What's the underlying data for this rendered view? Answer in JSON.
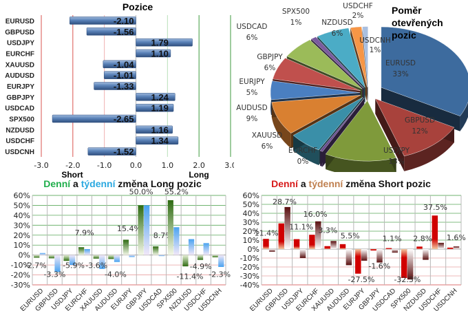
{
  "chart_data": [
    {
      "id": "positions",
      "type": "bar",
      "orientation": "horizontal",
      "title": "Pozice",
      "categories": [
        "EURUSD",
        "GBPUSD",
        "USDJPY",
        "EURCHF",
        "XAUUSD",
        "AUDUSD",
        "EURJPY",
        "GBPJPY",
        "USDCAD",
        "SPX500",
        "NZDUSD",
        "USDCHF",
        "USDCNH"
      ],
      "values": [
        -2.1,
        -1.56,
        1.79,
        1.1,
        -1.04,
        -1.01,
        -1.33,
        1.24,
        1.19,
        -2.65,
        1.16,
        1.34,
        -1.52
      ],
      "value_labels": [
        "-2.10",
        "-1.56",
        "1.79",
        "1.10",
        "-1.04",
        "-1.01",
        "-1.33",
        "1.24",
        "1.19",
        "-2.65",
        "1.16",
        "1.34",
        "-1.52"
      ],
      "xlim": [
        -3.0,
        3.0
      ],
      "xticks": [
        "-3.0",
        "-2.0",
        "-1.0",
        "0.0",
        "1.0",
        "2.0",
        "3.0"
      ],
      "xtick_values": [
        -3,
        -2,
        -1,
        0,
        1,
        2,
        3
      ],
      "short_label": "Short",
      "long_label": "Long",
      "colors": {
        "bar": "#4a72a8",
        "short_line": "#d9534f",
        "long_line": "#3c9a3c"
      }
    },
    {
      "id": "ratio",
      "type": "pie",
      "title_lines": [
        "Poměr",
        "otevřených",
        "pozic"
      ],
      "slices": [
        {
          "label": "EURUSD",
          "value": 33,
          "text": "33%",
          "color": "#3d6b9e"
        },
        {
          "label": "GBPUSD",
          "value": 12,
          "text": "12%",
          "color": "#a8423c"
        },
        {
          "label": "USDJPY",
          "value": 13,
          "text": "13%",
          "color": "#7f9a3b"
        },
        {
          "label": "EURCHF",
          "value": 0.5,
          "text": "0%",
          "color": "#6a4a8e"
        },
        {
          "label": "XAUUSD",
          "value": 6,
          "text": "6%",
          "color": "#3a8fa8"
        },
        {
          "label": "AUDUSD",
          "value": 9,
          "text": "9%",
          "color": "#d98031"
        },
        {
          "label": "EURJPY",
          "value": 5,
          "text": "5%",
          "color": "#4a7fc1"
        },
        {
          "label": "GBPJPY",
          "value": 6,
          "text": "6%",
          "color": "#c0504d"
        },
        {
          "label": "USDCAD",
          "value": 6,
          "text": "6%",
          "color": "#9bbb59"
        },
        {
          "label": "SPX500",
          "value": 1,
          "text": "1%",
          "color": "#7a5a9e"
        },
        {
          "label": "NZDUSD",
          "value": 6,
          "text": "6%",
          "color": "#4bacc6"
        },
        {
          "label": "USDCHF",
          "value": 2,
          "text": "2%",
          "color": "#f79646"
        },
        {
          "label": "USDCNH",
          "value": 1,
          "text": "1%",
          "color": "#a9bfe0"
        }
      ]
    },
    {
      "id": "long_change",
      "type": "bar",
      "title_parts": [
        {
          "text": "Denní",
          "color": "#1fae4b"
        },
        {
          "text": " a ",
          "color": "#111111"
        },
        {
          "text": "týdenní",
          "color": "#2aa8e0"
        },
        {
          "text": " změna Long pozic",
          "color": "#111111"
        }
      ],
      "categories": [
        "EURUSD",
        "GBPUSD",
        "USDJPY",
        "EURCHF",
        "XAUUSD",
        "AUDUSD",
        "EURJPY",
        "GBPJPY",
        "USDCAD",
        "SPX500",
        "NZDUSD",
        "USDCHF",
        "USDCNH"
      ],
      "series": [
        {
          "name": "Denní",
          "color": "#2e7d1e",
          "values": [
            -2.7,
            -3.3,
            -5.9,
            7.9,
            -3.6,
            -4.0,
            15.4,
            50.0,
            8.7,
            55.2,
            -11.4,
            -4.9,
            -2.3
          ],
          "labels": [
            "-2.7%",
            "-3.3%",
            "-5.9%",
            "7.9%",
            "-3.6%",
            "-4.0%",
            "15.4%",
            "50.0%",
            "8.7%",
            "55.2%",
            "-11.4%",
            "-4.9%",
            "-2.3%"
          ]
        },
        {
          "name": "Týdenní",
          "color": "#4aa3f0",
          "values": [
            2,
            -17,
            -10,
            6,
            -14,
            -7,
            -2,
            50,
            -1,
            28,
            16,
            12,
            -12
          ]
        }
      ],
      "ylim": [
        -30,
        60
      ],
      "yticks": [
        "-30%",
        "-20%",
        "-10%",
        "0%",
        "10%",
        "20%",
        "30%",
        "40%",
        "50%",
        "60%"
      ],
      "ytick_values": [
        -30,
        -20,
        -10,
        0,
        10,
        20,
        30,
        40,
        50,
        60
      ]
    },
    {
      "id": "short_change",
      "type": "bar",
      "title_parts": [
        {
          "text": "Denní",
          "color": "#d71a1a"
        },
        {
          "text": " a ",
          "color": "#111111"
        },
        {
          "text": "týdenní",
          "color": "#c08050"
        },
        {
          "text": " změna Short pozic",
          "color": "#111111"
        }
      ],
      "categories": [
        "EURUSD",
        "GBPUSD",
        "USDJPY",
        "EURCHF",
        "XAUUSD",
        "AUDUSD",
        "EURJPY",
        "GBPJPY",
        "USDCAD",
        "SPX500",
        "NZDUSD",
        "USDCHF",
        "USDCNH"
      ],
      "series": [
        {
          "name": "Denní",
          "color": "#cc0000",
          "values": [
            11.4,
            28.7,
            11.1,
            16.0,
            3.3,
            5.5,
            -27.5,
            -1.6,
            1.1,
            -32.3,
            2.8,
            37.5,
            1.6
          ],
          "labels": [
            "11.4%",
            "28.7%",
            "11.1%",
            "16.0%",
            "3.3%",
            "5.5%",
            "-27.5%",
            "-1.6%",
            "1.1%",
            "-32.3%",
            "2.8%",
            "37.5%",
            "1.6%"
          ]
        },
        {
          "name": "Týdenní",
          "color": "#6b1a1a",
          "values": [
            -3,
            47,
            -10,
            31,
            9,
            -18,
            -13,
            -15,
            -4,
            -34,
            -12,
            7,
            3
          ]
        }
      ],
      "ylim": [
        -40,
        60
      ],
      "yticks": [
        "-40%",
        "-30%",
        "-20%",
        "-10%",
        "0%",
        "10%",
        "20%",
        "30%",
        "40%",
        "50%",
        "60%"
      ],
      "ytick_values": [
        -40,
        -30,
        -20,
        -10,
        0,
        10,
        20,
        30,
        40,
        50,
        60
      ]
    }
  ]
}
